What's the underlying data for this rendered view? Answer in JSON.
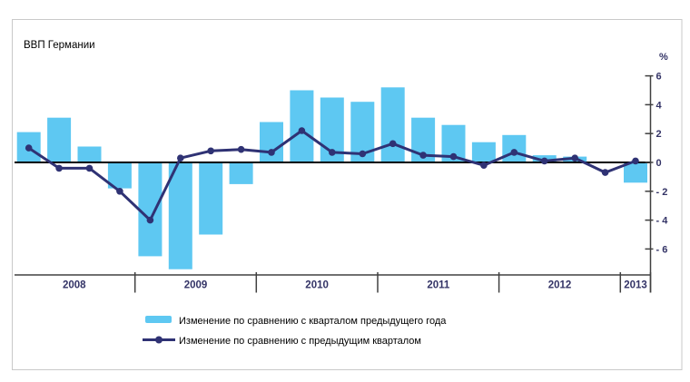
{
  "title": "ВВП Германии",
  "y_axis": {
    "unit_label": "%",
    "ticks": [
      6,
      4,
      2,
      0,
      -2,
      -4,
      -6
    ]
  },
  "x_axis": {
    "years": [
      {
        "label": "2008",
        "quarters": 4
      },
      {
        "label": "2009",
        "quarters": 4
      },
      {
        "label": "2010",
        "quarters": 4
      },
      {
        "label": "2011",
        "quarters": 4
      },
      {
        "label": "2012",
        "quarters": 4
      },
      {
        "label": "2013",
        "quarters": 1
      }
    ]
  },
  "legend": [
    {
      "type": "bar",
      "label": "Изменение по сравнению с кварталом предыдущего года"
    },
    {
      "type": "line",
      "label": "Изменение по сравнению с предыдущим кварталом"
    }
  ],
  "colors": {
    "bar": "#5ec8f2",
    "line": "#2f3274",
    "marker": "#2f3274",
    "zero_line": "#000000",
    "axis": "#404040",
    "tick_label": "#333366",
    "frame_border": "#c9c9c9",
    "background": "#ffffff"
  },
  "chart_data": {
    "type": "bar+line",
    "title": "ВВП Германии",
    "ylabel": "%",
    "ylim": [
      -8,
      6.5
    ],
    "yticks": [
      6,
      4,
      2,
      0,
      -2,
      -4,
      -6
    ],
    "grid": false,
    "legend_position": "bottom",
    "categories": [
      "2008 Q1",
      "2008 Q2",
      "2008 Q3",
      "2008 Q4",
      "2009 Q1",
      "2009 Q2",
      "2009 Q3",
      "2009 Q4",
      "2010 Q1",
      "2010 Q2",
      "2010 Q3",
      "2010 Q4",
      "2011 Q1",
      "2011 Q2",
      "2011 Q3",
      "2011 Q4",
      "2012 Q1",
      "2012 Q2",
      "2012 Q3",
      "2012 Q4",
      "2013 Q1"
    ],
    "series": [
      {
        "name": "Изменение по сравнению с кварталом предыдущего года",
        "type": "bar",
        "values": [
          2.1,
          3.1,
          1.1,
          -1.8,
          -6.5,
          -7.4,
          -5.0,
          -1.5,
          2.8,
          5.0,
          4.5,
          4.2,
          5.2,
          3.1,
          2.6,
          1.4,
          1.9,
          0.5,
          0.4,
          0.0,
          -1.4
        ]
      },
      {
        "name": "Изменение по сравнению с предыдущим кварталом",
        "type": "line",
        "values": [
          1.0,
          -0.4,
          -0.4,
          -2.0,
          -4.0,
          0.3,
          0.8,
          0.9,
          0.7,
          2.2,
          0.7,
          0.6,
          1.3,
          0.5,
          0.4,
          -0.2,
          0.7,
          0.1,
          0.3,
          -0.7,
          0.1
        ]
      }
    ]
  }
}
